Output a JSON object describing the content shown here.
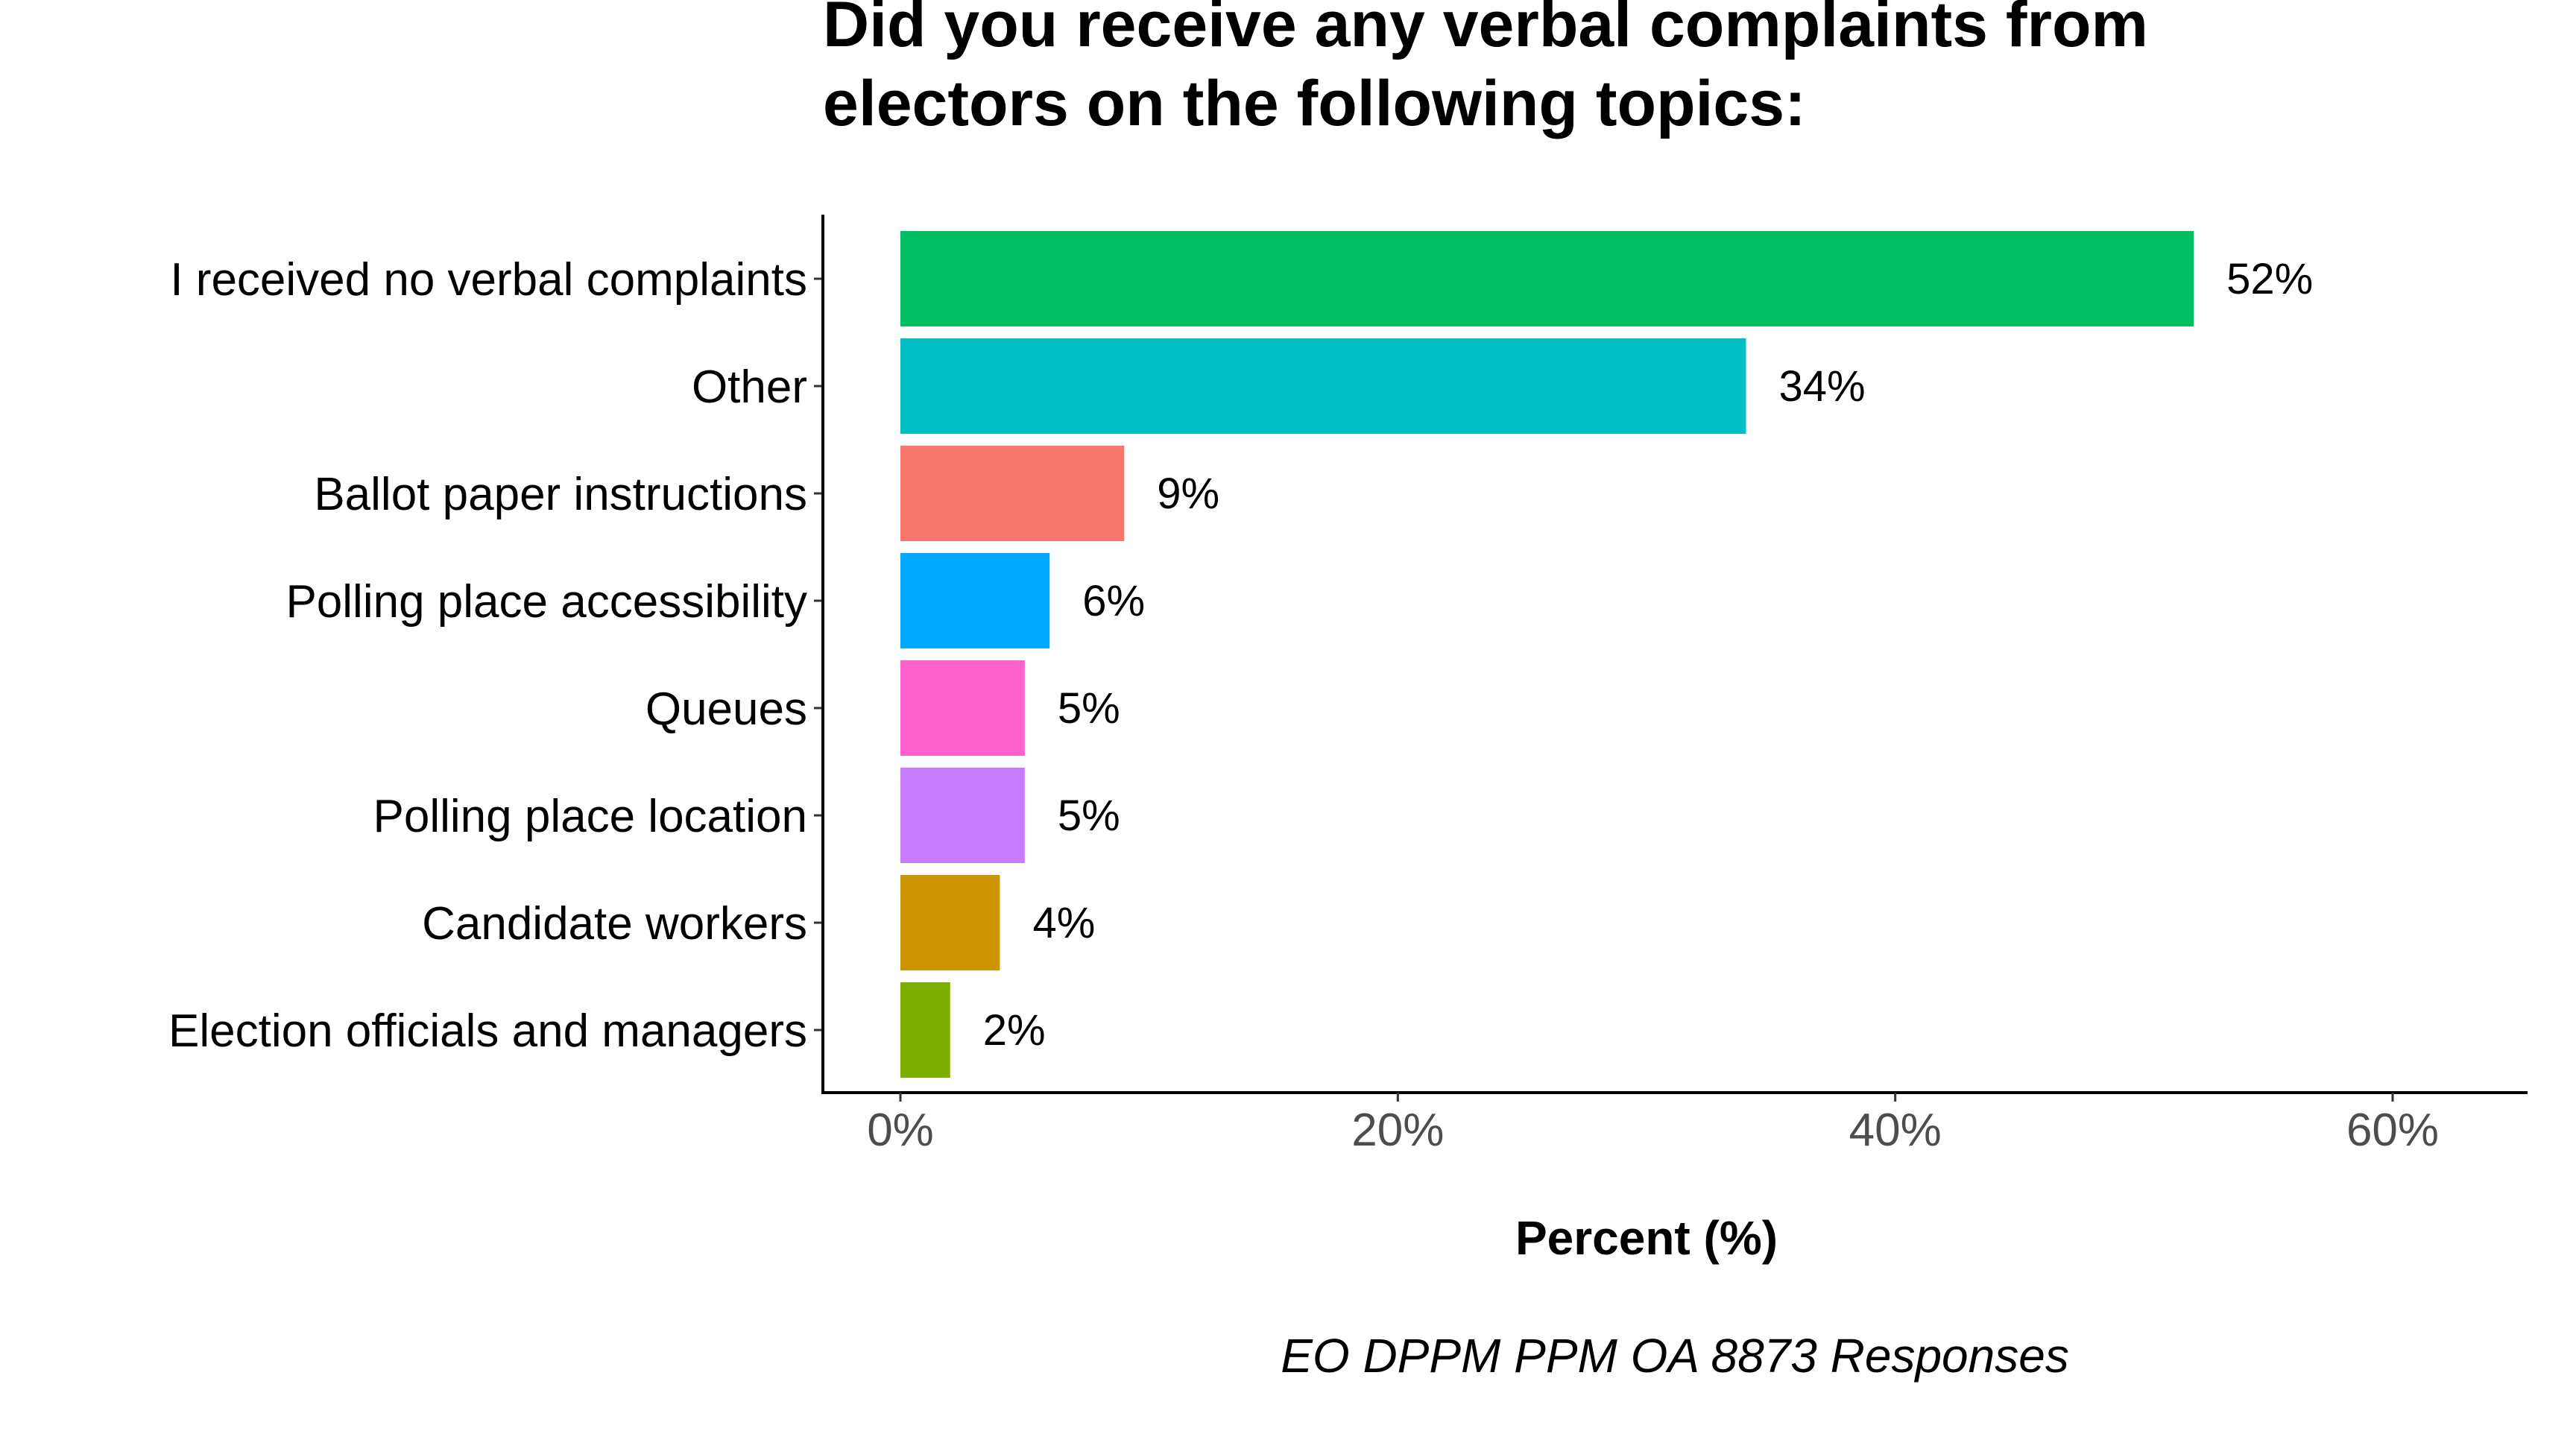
{
  "chart_data": {
    "type": "bar",
    "orientation": "horizontal",
    "title": "Did you receive any verbal complaints from electors on the following topics:",
    "title_lines": [
      "Did you receive any verbal complaints from",
      "electors on the following topics:"
    ],
    "xlabel": "Percent (%)",
    "caption": "EO DPPM PPM OA 8873 Responses",
    "categories": [
      "I received no verbal complaints",
      "Other",
      "Ballot paper instructions",
      "Polling place accessibility",
      "Queues",
      "Polling place location",
      "Candidate workers",
      "Election officials and managers"
    ],
    "values": [
      52,
      34,
      9,
      6,
      5,
      5,
      4,
      2
    ],
    "value_labels": [
      "52%",
      "34%",
      "9%",
      "6%",
      "5%",
      "5%",
      "4%",
      "2%"
    ],
    "bar_colors": [
      "#00BF63",
      "#00BFC4",
      "#F8766D",
      "#00A9FF",
      "#FF61CC",
      "#C77CFF",
      "#CD9600",
      "#7CAE00"
    ],
    "xlim": [
      0,
      65
    ],
    "x_ticks": [
      0,
      20,
      40,
      60
    ],
    "x_tick_labels": [
      "0%",
      "20%",
      "40%",
      "60%"
    ],
    "grid": false,
    "legend": "none"
  }
}
